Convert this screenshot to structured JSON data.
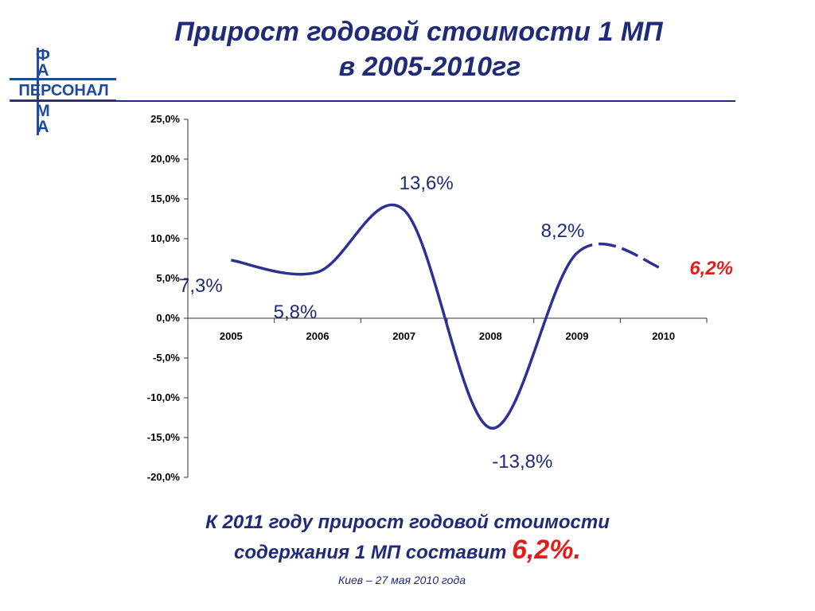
{
  "header": {
    "title_line1": "Прирост годовой стоимости 1 МП",
    "title_line2": "в 2005-2010гг"
  },
  "logo": {
    "letters_top": [
      "Ф",
      "А"
    ],
    "word": "ПЕРСОНАЛ",
    "letters_bottom": [
      "М",
      "А"
    ]
  },
  "colors": {
    "primary": "#1f2a78",
    "line": "#2e3192",
    "highlight": "#e31b1b",
    "axis": "#333333"
  },
  "chart_data": {
    "type": "line",
    "categories": [
      "2005",
      "2006",
      "2007",
      "2008",
      "2009",
      "2010"
    ],
    "series": [
      {
        "values": [
          7.3,
          5.8,
          13.6,
          -13.8,
          8.2,
          6.2
        ],
        "dashed_from_index": 4
      }
    ],
    "data_labels": [
      "7,3%",
      "5,8%",
      "13,6%",
      "-13,8%",
      "8,2%",
      "6,2%"
    ],
    "highlight_label_index": 5,
    "y_ticks": [
      25,
      20,
      15,
      10,
      5,
      0,
      -5,
      -10,
      -15,
      -20
    ],
    "y_tick_labels": [
      "25,0%",
      "20,0%",
      "15,0%",
      "10,0%",
      "5,0%",
      "0,0%",
      "-5,0%",
      "-10,0%",
      "-15,0%",
      "-20,0%"
    ],
    "ylim": [
      -20,
      25
    ],
    "xlabel": "",
    "ylabel": "",
    "grid": false
  },
  "conclusion": {
    "line1": "К 2011 году прирост годовой стоимости",
    "line2_text": "содержания 1 МП составит ",
    "line2_value": "6,2%."
  },
  "footer": "Киев – 27 мая 2010 года"
}
